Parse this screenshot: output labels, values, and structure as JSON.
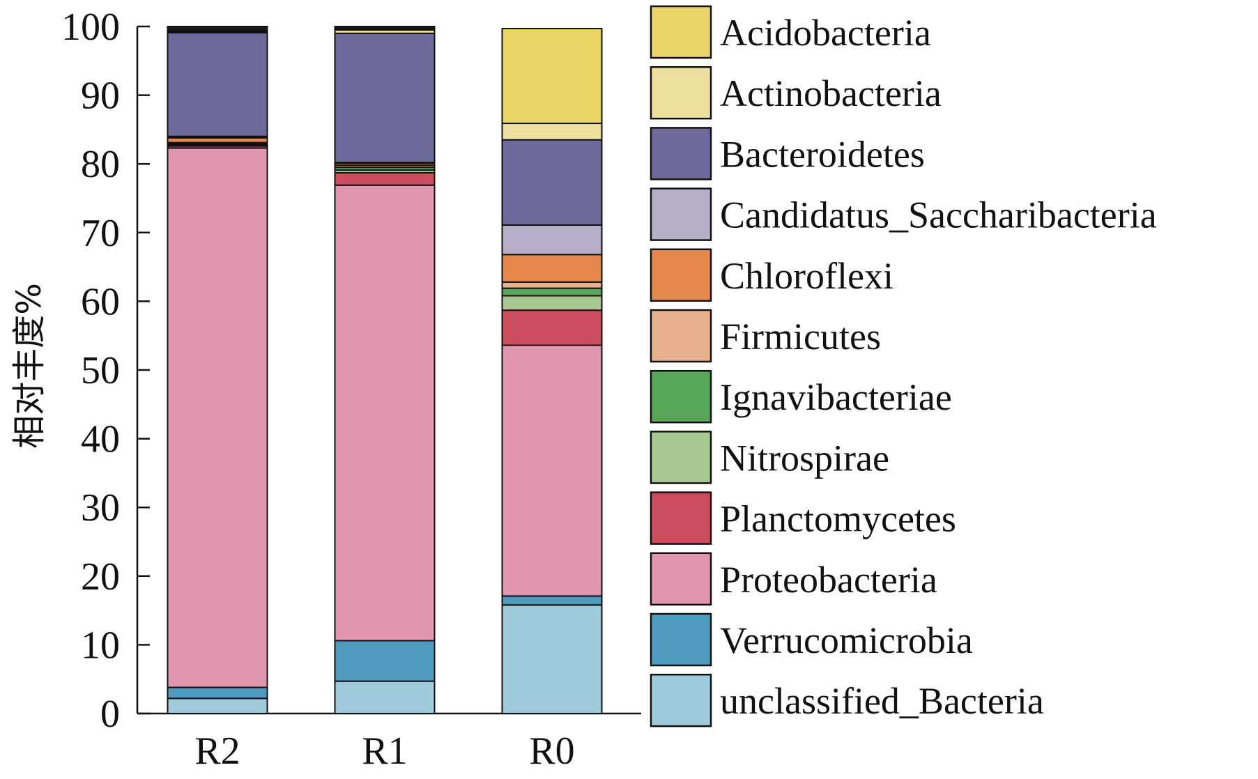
{
  "chart_data": {
    "type": "bar",
    "stacked": true,
    "title": "",
    "xlabel": "",
    "ylabel": "相对丰度%",
    "ylim": [
      0,
      100
    ],
    "yticks": [
      "0",
      "10",
      "20",
      "30",
      "40",
      "50",
      "60",
      "70",
      "80",
      "90",
      "100"
    ],
    "grid": false,
    "legend_position": "right",
    "categories": [
      "R2",
      "R1",
      "R0"
    ],
    "series": [
      {
        "name": "unclassified_Bacteria",
        "color": "#9fcadb",
        "values": [
          2.2,
          4.7,
          15.8
        ]
      },
      {
        "name": "Verrucomicrobia",
        "color": "#4f9bbf",
        "values": [
          1.6,
          5.9,
          1.3
        ]
      },
      {
        "name": "Proteobacteria",
        "color": "#e197b1",
        "values": [
          78.5,
          66.3,
          36.5
        ]
      },
      {
        "name": "Planctomycetes",
        "color": "#cc4d5d",
        "values": [
          0.3,
          1.8,
          5.1
        ]
      },
      {
        "name": "Nitrospirae",
        "color": "#a8c892",
        "values": [
          0.2,
          0.4,
          2.1
        ]
      },
      {
        "name": "Ignavibacteriae",
        "color": "#59a65b",
        "values": [
          0.1,
          0.4,
          1.1
        ]
      },
      {
        "name": "Firmicutes",
        "color": "#e6b08c",
        "values": [
          0.2,
          0.3,
          0.9
        ]
      },
      {
        "name": "Chloroflexi",
        "color": "#e5884b",
        "values": [
          0.7,
          0.3,
          4.0
        ]
      },
      {
        "name": "Candidatus_Saccharibacteria",
        "color": "#b6adc9",
        "values": [
          0.2,
          0.1,
          4.3
        ]
      },
      {
        "name": "Bacteroidetes",
        "color": "#6e6a9b",
        "values": [
          15.1,
          18.8,
          12.4
        ]
      },
      {
        "name": "Actinobacteria",
        "color": "#ede09f",
        "values": [
          0.2,
          0.5,
          2.4
        ]
      },
      {
        "name": "Acidobacteria",
        "color": "#ead566",
        "values": [
          0.1,
          0.1,
          13.8
        ]
      },
      {
        "name": "",
        "color": "#1a1a1a",
        "values": [
          0.6,
          0.4,
          0.0
        ]
      }
    ],
    "legend_entries": [
      {
        "name": "Acidobacteria",
        "color": "#ead566"
      },
      {
        "name": "Actinobacteria",
        "color": "#ede09f"
      },
      {
        "name": "Bacteroidetes",
        "color": "#6e6a9b"
      },
      {
        "name": "Candidatus_Saccharibacteria",
        "color": "#b6adc9"
      },
      {
        "name": "Chloroflexi",
        "color": "#e5884b"
      },
      {
        "name": "Firmicutes",
        "color": "#e6b08c"
      },
      {
        "name": "Ignavibacteriae",
        "color": "#59a65b"
      },
      {
        "name": "Nitrospirae",
        "color": "#a8c892"
      },
      {
        "name": "Planctomycetes",
        "color": "#cc4d5d"
      },
      {
        "name": "Proteobacteria",
        "color": "#e197b1"
      },
      {
        "name": "Verrucomicrobia",
        "color": "#4f9bbf"
      },
      {
        "name": "unclassified_Bacteria",
        "color": "#9fcadb"
      }
    ]
  }
}
